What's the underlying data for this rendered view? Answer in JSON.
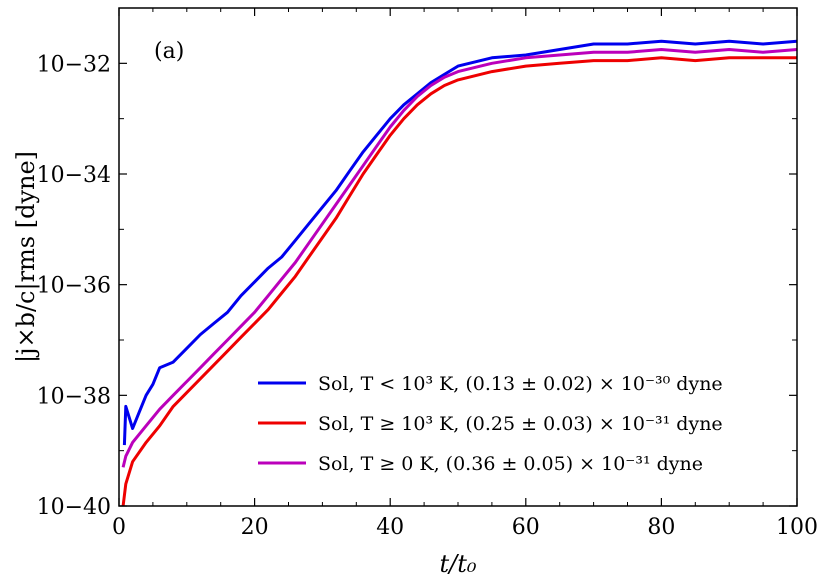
{
  "chart_data": {
    "type": "line",
    "panel_label": "(a)",
    "xlabel": "t/t₀",
    "ylabel": "|j×b/c|rms [dyne]",
    "xlim": [
      0,
      100
    ],
    "ylim_log10": [
      -40,
      -31
    ],
    "y_scale": "log",
    "x_ticks": [
      0,
      20,
      40,
      60,
      80,
      100
    ],
    "x_tick_labels": [
      "0",
      "20",
      "40",
      "60",
      "80",
      "100"
    ],
    "y_ticks_log10": [
      -40,
      -38,
      -36,
      -34,
      -32
    ],
    "y_tick_labels": [
      "10−40",
      "10−38",
      "10−36",
      "10−34",
      "10−32"
    ],
    "legend_position": "lower-right",
    "series": [
      {
        "name": "Sol, T < 10³ K, (0.13 ± 0.02) × 10⁻³⁰ dyne",
        "color": "#0000ee",
        "x": [
          0.8,
          1,
          2,
          3,
          4,
          5,
          6,
          8,
          10,
          12,
          14,
          16,
          18,
          20,
          22,
          24,
          26,
          28,
          30,
          32,
          34,
          36,
          38,
          40,
          42,
          44,
          46,
          48,
          50,
          55,
          60,
          65,
          70,
          75,
          80,
          85,
          90,
          95,
          100
        ],
        "log10_y": [
          -38.9,
          -38.2,
          -38.6,
          -38.3,
          -38.0,
          -37.8,
          -37.5,
          -37.4,
          -37.15,
          -36.9,
          -36.7,
          -36.5,
          -36.2,
          -35.95,
          -35.7,
          -35.5,
          -35.2,
          -34.9,
          -34.6,
          -34.3,
          -33.95,
          -33.6,
          -33.3,
          -33.0,
          -32.75,
          -32.55,
          -32.35,
          -32.2,
          -32.05,
          -31.9,
          -31.85,
          -31.75,
          -31.65,
          -31.65,
          -31.6,
          -31.65,
          -31.6,
          -31.65,
          -31.6
        ]
      },
      {
        "name": "Sol, T ≥ 10³ K, (0.25 ± 0.03) × 10⁻³¹ dyne",
        "color": "#ee0000",
        "x": [
          0.6,
          1,
          2,
          4,
          6,
          8,
          10,
          12,
          14,
          16,
          18,
          20,
          22,
          24,
          26,
          28,
          30,
          32,
          34,
          36,
          38,
          40,
          42,
          44,
          46,
          48,
          50,
          55,
          60,
          65,
          70,
          75,
          80,
          85,
          90,
          95,
          100
        ],
        "log10_y": [
          -40.0,
          -39.6,
          -39.2,
          -38.85,
          -38.55,
          -38.2,
          -37.95,
          -37.7,
          -37.45,
          -37.2,
          -36.95,
          -36.7,
          -36.45,
          -36.15,
          -35.85,
          -35.5,
          -35.15,
          -34.8,
          -34.4,
          -34.0,
          -33.65,
          -33.3,
          -33.0,
          -32.75,
          -32.55,
          -32.4,
          -32.3,
          -32.15,
          -32.05,
          -32.0,
          -31.95,
          -31.95,
          -31.9,
          -31.95,
          -31.9,
          -31.9,
          -31.9
        ]
      },
      {
        "name": "Sol, T ≥ 0 K, (0.36 ± 0.05) × 10⁻³¹ dyne",
        "color": "#bb00bb",
        "x": [
          0.6,
          1,
          2,
          4,
          6,
          8,
          10,
          12,
          14,
          16,
          18,
          20,
          22,
          24,
          26,
          28,
          30,
          32,
          34,
          36,
          38,
          40,
          42,
          44,
          46,
          48,
          50,
          55,
          60,
          65,
          70,
          75,
          80,
          85,
          90,
          95,
          100
        ],
        "log10_y": [
          -39.3,
          -39.1,
          -38.85,
          -38.55,
          -38.25,
          -38.0,
          -37.75,
          -37.5,
          -37.25,
          -37.0,
          -36.75,
          -36.5,
          -36.2,
          -35.9,
          -35.6,
          -35.25,
          -34.9,
          -34.55,
          -34.2,
          -33.85,
          -33.5,
          -33.15,
          -32.85,
          -32.6,
          -32.4,
          -32.25,
          -32.15,
          -32.0,
          -31.9,
          -31.85,
          -31.8,
          -31.8,
          -31.75,
          -31.8,
          -31.75,
          -31.8,
          -31.75
        ]
      }
    ]
  }
}
